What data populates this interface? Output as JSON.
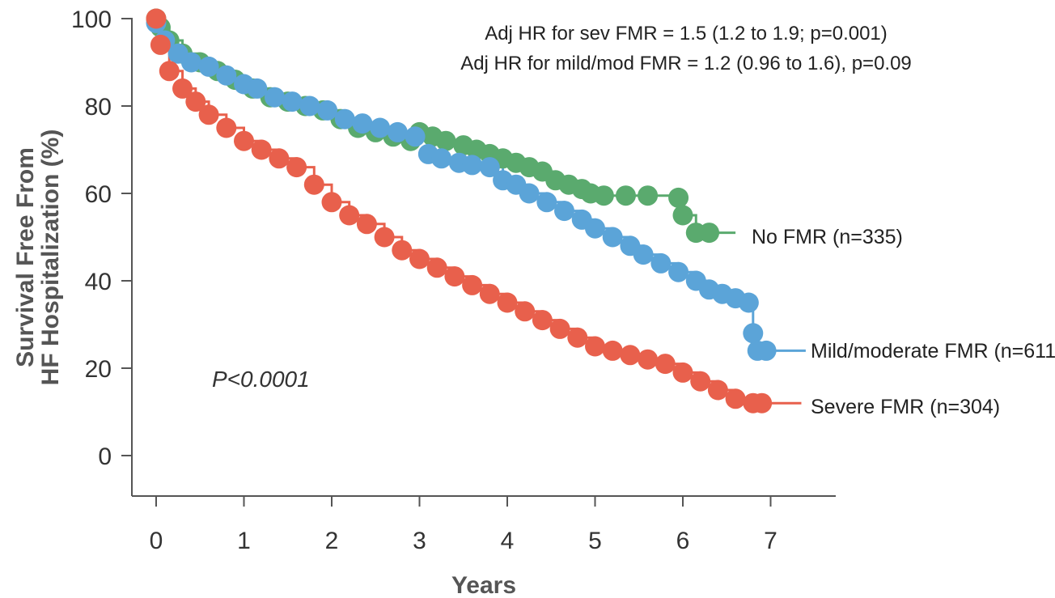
{
  "chart_data": {
    "type": "line",
    "title": "",
    "xlabel": "Years",
    "ylabel_line1": "Survival Free From",
    "ylabel_line2": "HF Hospitalization (%)",
    "xlim": [
      0,
      7
    ],
    "ylim": [
      0,
      100
    ],
    "x_ticks": [
      0,
      1,
      2,
      3,
      4,
      5,
      6,
      7
    ],
    "y_ticks": [
      0,
      20,
      40,
      60,
      80,
      100
    ],
    "grid": false,
    "annotations": {
      "hr_severe": "Adj HR for sev FMR = 1.5 (1.2 to 1.9; p=0.001)",
      "hr_mild": "Adj HR for mild/mod FMR = 1.2 (0.96 to 1.6), p=0.09",
      "p_value": "P<0.0001"
    },
    "series": [
      {
        "name": "No FMR (n=335)",
        "color": "#5aaa6e",
        "x": [
          0,
          0.05,
          0.15,
          0.3,
          0.5,
          0.7,
          0.9,
          1.1,
          1.3,
          1.5,
          1.7,
          1.9,
          2.1,
          2.3,
          2.5,
          2.7,
          2.9,
          3.0,
          3.15,
          3.3,
          3.5,
          3.65,
          3.8,
          3.95,
          4.1,
          4.25,
          4.4,
          4.55,
          4.7,
          4.85,
          4.95,
          5.1,
          5.35,
          5.6,
          5.95,
          6.0,
          6.15,
          6.3,
          6.6
        ],
        "y": [
          100,
          98,
          95,
          92,
          90,
          88,
          86,
          84,
          82,
          81,
          80,
          79,
          77,
          75,
          74,
          73,
          72,
          74,
          73,
          72,
          71,
          70,
          69,
          68,
          67,
          66,
          65,
          63,
          62,
          61,
          60,
          59.5,
          59.5,
          59.5,
          59,
          55,
          51,
          51,
          51
        ]
      },
      {
        "name": "Mild/moderate FMR (n=611)",
        "color": "#5ba4d8",
        "x": [
          0,
          0.1,
          0.25,
          0.4,
          0.6,
          0.8,
          1.0,
          1.15,
          1.35,
          1.55,
          1.75,
          1.95,
          2.15,
          2.35,
          2.55,
          2.75,
          2.95,
          3.1,
          3.25,
          3.45,
          3.6,
          3.8,
          3.95,
          4.1,
          4.25,
          4.45,
          4.65,
          4.85,
          5.0,
          5.2,
          5.4,
          5.55,
          5.75,
          5.95,
          6.15,
          6.3,
          6.45,
          6.6,
          6.75,
          6.8,
          6.85,
          6.95,
          7.4
        ],
        "y": [
          99,
          95,
          92,
          90,
          89,
          87,
          85,
          84,
          82,
          81,
          80,
          79,
          77,
          76,
          75,
          74,
          73,
          69,
          68,
          67,
          66.5,
          66,
          63,
          62,
          60,
          58,
          56,
          54,
          52,
          50,
          48,
          46,
          44,
          42,
          40,
          38,
          37,
          36,
          35,
          28,
          24,
          24,
          24
        ]
      },
      {
        "name": "Severe FMR (n=304)",
        "color": "#e8604c",
        "x": [
          0,
          0.05,
          0.15,
          0.3,
          0.45,
          0.6,
          0.8,
          1.0,
          1.2,
          1.4,
          1.6,
          1.8,
          2.0,
          2.2,
          2.4,
          2.6,
          2.8,
          3.0,
          3.2,
          3.4,
          3.6,
          3.8,
          4.0,
          4.2,
          4.4,
          4.6,
          4.8,
          5.0,
          5.2,
          5.4,
          5.6,
          5.8,
          6.0,
          6.2,
          6.4,
          6.6,
          6.8,
          6.9,
          7.35
        ],
        "y": [
          100,
          94,
          88,
          84,
          81,
          78,
          75,
          72,
          70,
          68,
          66,
          62,
          58,
          55,
          53,
          50,
          47,
          45,
          43,
          41,
          39,
          37,
          35,
          33,
          31,
          29,
          27,
          25,
          24,
          23,
          22,
          21,
          19,
          17,
          15,
          13,
          12,
          12,
          12
        ]
      }
    ]
  }
}
